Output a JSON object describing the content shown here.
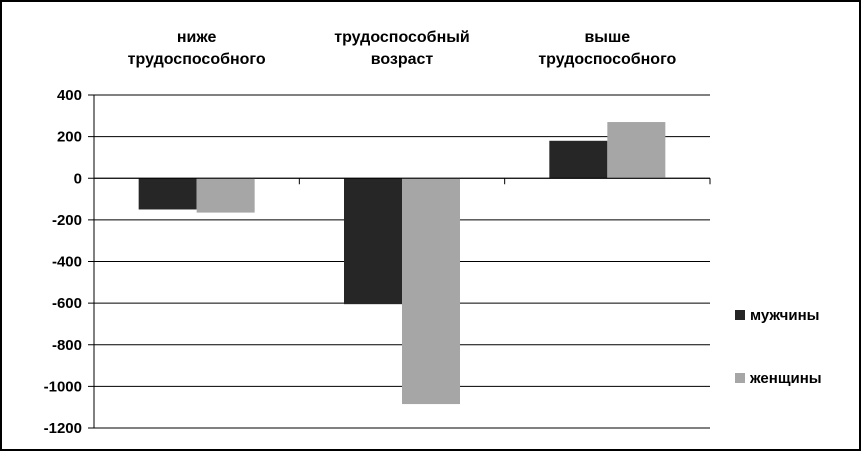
{
  "chart_data": {
    "type": "bar",
    "categories": [
      [
        "ниже",
        "трудоспособного"
      ],
      [
        "трудоспособный",
        "возраст"
      ],
      [
        "выше",
        "трудоспособного"
      ]
    ],
    "series": [
      {
        "name": "мужчины",
        "values": [
          -150,
          -605,
          180
        ],
        "color": "#262626"
      },
      {
        "name": "женщины",
        "values": [
          -165,
          -1085,
          270
        ],
        "color": "#a6a6a6"
      }
    ],
    "y_ticks": [
      400,
      200,
      0,
      -200,
      -400,
      -600,
      -800,
      -1000,
      -1200
    ],
    "ylim": [
      -1200,
      400
    ],
    "grid": true,
    "legend_position": "right",
    "category_labels_position": "top"
  }
}
